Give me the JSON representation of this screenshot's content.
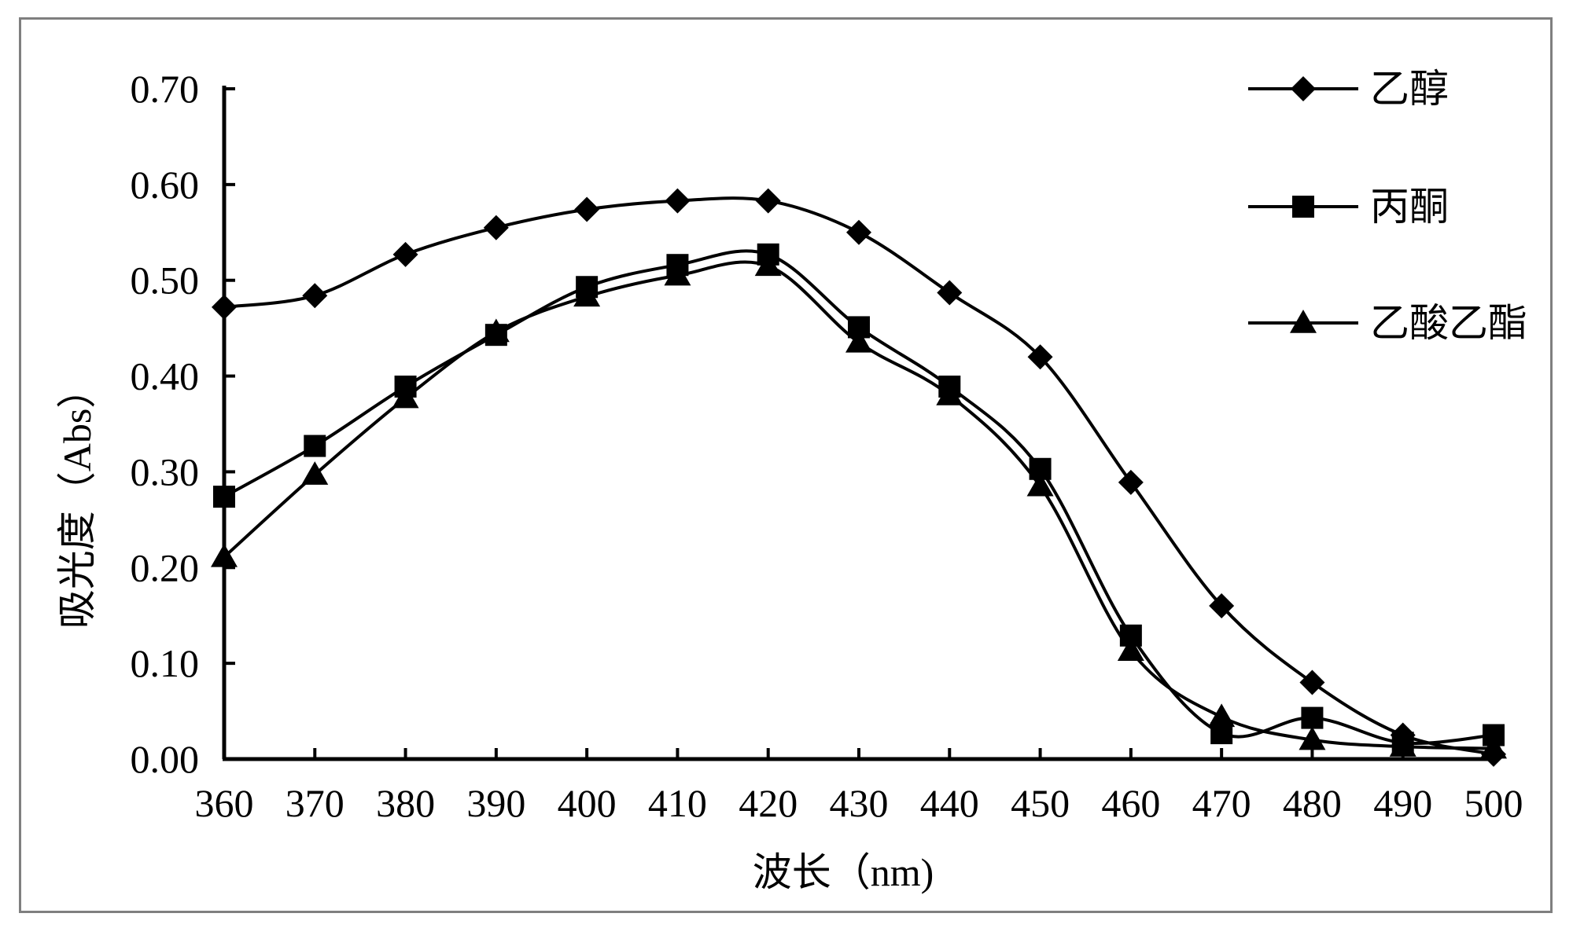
{
  "chart_data": {
    "type": "line",
    "xlabel": "波长（nm)",
    "ylabel": "吸光度（Abs）",
    "x": [
      360,
      370,
      380,
      390,
      400,
      410,
      420,
      430,
      440,
      450,
      460,
      470,
      480,
      490,
      500
    ],
    "xticks": [
      "360",
      "370",
      "380",
      "390",
      "400",
      "410",
      "420",
      "430",
      "440",
      "450",
      "460",
      "470",
      "480",
      "490",
      "500"
    ],
    "yticks": [
      "0.00",
      "0.10",
      "0.20",
      "0.30",
      "0.40",
      "0.50",
      "0.60",
      "0.70"
    ],
    "ylim": [
      0,
      0.7
    ],
    "xlim": [
      360,
      500
    ],
    "grid": false,
    "legend_position": "top-right",
    "series": [
      {
        "name": "乙醇",
        "marker": "diamond",
        "values": [
          0.472,
          0.484,
          0.527,
          0.555,
          0.574,
          0.583,
          0.583,
          0.55,
          0.487,
          0.42,
          0.289,
          0.16,
          0.08,
          0.025,
          0.005
        ]
      },
      {
        "name": "丙酮",
        "marker": "square",
        "values": [
          0.274,
          0.327,
          0.389,
          0.443,
          0.493,
          0.516,
          0.527,
          0.451,
          0.389,
          0.303,
          0.129,
          0.027,
          0.043,
          0.017,
          0.025
        ]
      },
      {
        "name": "乙酸乙酯",
        "marker": "triangle",
        "values": [
          0.211,
          0.297,
          0.377,
          0.446,
          0.483,
          0.505,
          0.515,
          0.435,
          0.38,
          0.285,
          0.113,
          0.044,
          0.02,
          0.013,
          0.011
        ]
      }
    ]
  }
}
